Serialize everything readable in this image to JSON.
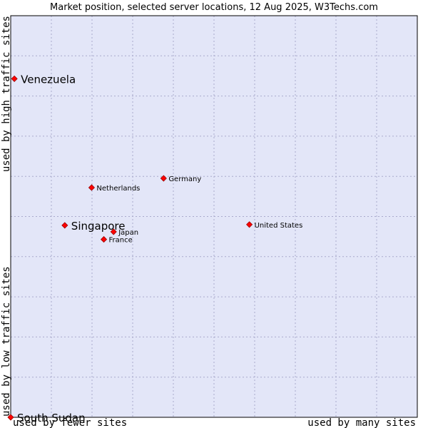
{
  "chart_data": {
    "type": "scatter",
    "title": "Market position, selected server locations, 12 Aug 2025, W3Techs.com",
    "x_axis": {
      "low_label": "used by fewer sites",
      "high_label": "used by many sites",
      "range": [
        0,
        100
      ]
    },
    "y_axis": {
      "low_label": "used by low traffic sites",
      "high_label": "used by high traffic sites",
      "range": [
        0,
        100
      ]
    },
    "grid": true,
    "colors": {
      "plot_bg": "#e3e6f8",
      "grid": "#aaaacc",
      "point": "#ff0000",
      "point_border": "#990000"
    },
    "points": [
      {
        "name": "Venezuela",
        "x": 0.9,
        "y": 84.3,
        "size": "big"
      },
      {
        "name": "Germany",
        "x": 37.6,
        "y": 59.5,
        "size": "small"
      },
      {
        "name": "Netherlands",
        "x": 19.9,
        "y": 57.2,
        "size": "small"
      },
      {
        "name": "Singapore",
        "x": 13.3,
        "y": 47.8,
        "size": "big"
      },
      {
        "name": "United States",
        "x": 58.7,
        "y": 48.0,
        "size": "small"
      },
      {
        "name": "Japan",
        "x": 25.3,
        "y": 46.2,
        "size": "small"
      },
      {
        "name": "France",
        "x": 22.9,
        "y": 44.3,
        "size": "small"
      },
      {
        "name": "South Sudan",
        "x": 0.0,
        "y": 0.0,
        "size": "big"
      }
    ]
  }
}
